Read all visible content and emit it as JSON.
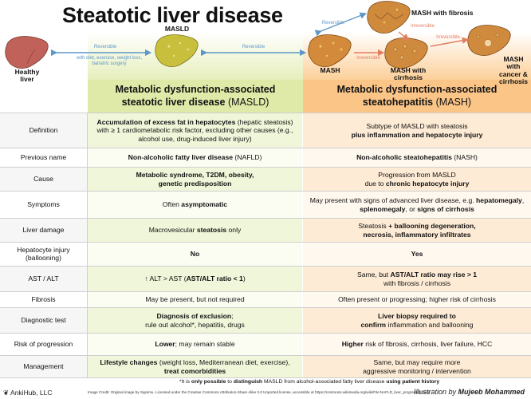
{
  "title": "Steatotic liver disease",
  "diagram": {
    "stages": {
      "healthy": "Healthy liver",
      "masld": "MASLD",
      "mash": "MASH",
      "mash_fibrosis": "MASH with fibrosis",
      "mash_cirrhosis": "MASH with cirrhosis",
      "mash_cancer": "MASH with cancer & cirrhosis"
    },
    "arrows": {
      "healthy_masld_top": "Reversible",
      "healthy_masld_bottom": "with diet, exercise, weight loss, bariatric surgery",
      "masld_mash": "Reversible",
      "mash_fibrosis_rev": "Reversible",
      "fibrosis_cirrhosis": "Irreversible",
      "mash_cirrhosis": "Irreversible",
      "cirrhosis_cancer": "Irreversible"
    }
  },
  "columns": {
    "masld": {
      "line1": "Metabolic dysfunction-associated",
      "line2_bold": "steatotic liver disease",
      "line2_plain": " (MASLD)"
    },
    "mash": {
      "line1": "Metabolic dysfunction-associated",
      "line2_bold": "steatohepatitis",
      "line2_plain": " (MASH)"
    }
  },
  "rows": [
    {
      "label": "Definition",
      "masld": [
        {
          "b": "Accumulation of excess fat in hepatocytes"
        },
        {
          "t": " (hepatic steatosis) with ≥ 1 cardiometabolic risk factor, excluding other causes (e.g., alcohol use, drug-induced liver injury)"
        }
      ],
      "mash": [
        {
          "t": "Subtype of MASLD with steatosis "
        },
        {
          "br": true
        },
        {
          "b": "plus inflammation and hepatocyte injury"
        }
      ]
    },
    {
      "label": "Previous name",
      "masld": [
        {
          "b": "Non-alcoholic fatty liver disease"
        },
        {
          "t": " (NAFLD)"
        }
      ],
      "mash": [
        {
          "b": "Non-alcoholic steatohepatitis"
        },
        {
          "t": " (NASH)"
        }
      ]
    },
    {
      "label": "Cause",
      "masld": [
        {
          "b": "Metabolic syndrome, T2DM, obesity,"
        },
        {
          "br": true
        },
        {
          "b": "genetic predisposition"
        }
      ],
      "mash": [
        {
          "t": "Progression from MASLD"
        },
        {
          "br": true
        },
        {
          "t": "due to "
        },
        {
          "b": "chronic hepatocyte injury"
        }
      ]
    },
    {
      "label": "Symptoms",
      "masld": [
        {
          "t": "Often "
        },
        {
          "b": "asymptomatic"
        }
      ],
      "mash": [
        {
          "t": "May present with signs of advanced liver disease, e.g. "
        },
        {
          "b": "hepatomegaly"
        },
        {
          "t": ", "
        },
        {
          "b": "splenomegaly"
        },
        {
          "t": ", or "
        },
        {
          "b": "signs of cirrhosis"
        }
      ]
    },
    {
      "label": "Liver damage",
      "masld": [
        {
          "t": "Macrovesicular "
        },
        {
          "b": "steatosis"
        },
        {
          "t": " only"
        }
      ],
      "mash": [
        {
          "t": "Steatosis "
        },
        {
          "b": "+ ballooning degeneration,"
        },
        {
          "br": true
        },
        {
          "b": "necrosis, inflammatory infiltrates"
        }
      ]
    },
    {
      "label": "Hepatocyte injury (ballooning)",
      "masld": [
        {
          "b": "No"
        }
      ],
      "mash": [
        {
          "b": "Yes"
        }
      ]
    },
    {
      "label": "AST / ALT",
      "masld": [
        {
          "t": "↑ ALT > AST ("
        },
        {
          "b": "AST/ALT ratio < 1"
        },
        {
          "t": ")"
        }
      ],
      "mash": [
        {
          "t": "Same, but "
        },
        {
          "b": "AST/ALT ratio may rise > 1"
        },
        {
          "br": true
        },
        {
          "t": "with fibrosis / cirrhosis"
        }
      ]
    },
    {
      "label": "Fibrosis",
      "masld": [
        {
          "t": "May be present, but not required"
        }
      ],
      "mash": [
        {
          "t": "Often present or progressing; higher risk of cirrhosis"
        }
      ]
    },
    {
      "label": "Diagnostic test",
      "masld": [
        {
          "b": "Diagnosis of exclusion"
        },
        {
          "t": ";"
        },
        {
          "br": true
        },
        {
          "t": "rule out alcohol*, hepatitis, drugs"
        }
      ],
      "mash": [
        {
          "b": "Liver biopsy required to"
        },
        {
          "br": true
        },
        {
          "b": "confirm"
        },
        {
          "t": " inflammation and ballooning"
        }
      ]
    },
    {
      "label": "Risk of progression",
      "masld": [
        {
          "b": "Lower"
        },
        {
          "t": "; may remain stable"
        }
      ],
      "mash": [
        {
          "b": "Higher"
        },
        {
          "t": " risk of fibrosis, cirrhosis, liver failure, HCC"
        }
      ]
    },
    {
      "label": "Management",
      "masld": [
        {
          "b": "Lifestyle changes"
        },
        {
          "t": " (weight loss, Mediterranean diet, exercise), "
        },
        {
          "b": "treat comorbidities"
        }
      ],
      "mash": [
        {
          "t": "Same, but may require more"
        },
        {
          "br": true
        },
        {
          "t": "aggressive monitoring / intervention"
        }
      ]
    }
  ],
  "footnote": [
    {
      "t": "*It is "
    },
    {
      "b": "only possible"
    },
    {
      "t": " to "
    },
    {
      "b": "distinguish"
    },
    {
      "t": " MASLD from alcohol-associated fatty liver disease "
    },
    {
      "b": "using patient history"
    }
  ],
  "credit": "Image Credit: Original image by Signimu. Licensed under the Creative Commons Attribution-Share Alike 3.0 Unported license, accessible at https://commons.wikimedia.org/wiki/File:NAFLD_liver_progression.svg",
  "brand": "AnkiHub, LLC",
  "illustration": {
    "prefix": "Illustration by ",
    "author": "Mujeeb Mohammed"
  },
  "colors": {
    "masld_header": "#dfeaa8",
    "mash_header": "#fbc588",
    "blue_arrow": "#5d97c8",
    "red_arrow": "#e27d63"
  }
}
